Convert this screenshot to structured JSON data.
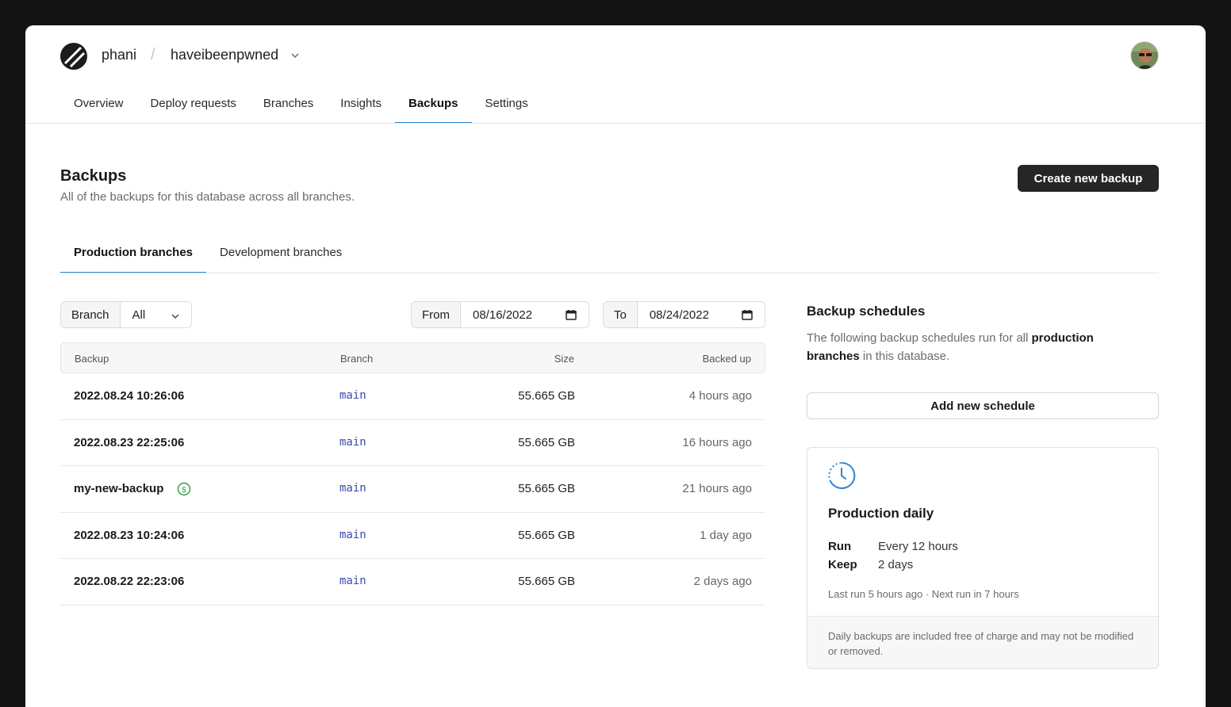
{
  "header": {
    "org": "phani",
    "separator": "/",
    "database": "haveibeenpwned"
  },
  "nav": {
    "items": [
      {
        "label": "Overview"
      },
      {
        "label": "Deploy requests"
      },
      {
        "label": "Branches"
      },
      {
        "label": "Insights"
      },
      {
        "label": "Backups",
        "active": true
      },
      {
        "label": "Settings"
      }
    ]
  },
  "page": {
    "title": "Backups",
    "subtitle": "All of the backups for this database across all branches.",
    "create_button": "Create new backup"
  },
  "tabs": [
    {
      "label": "Production branches",
      "active": true
    },
    {
      "label": "Development branches"
    }
  ],
  "filters": {
    "branch_label": "Branch",
    "branch_value": "All",
    "from_label": "From",
    "from_value": "08/16/2022",
    "to_label": "To",
    "to_value": "08/24/2022"
  },
  "table": {
    "headers": {
      "backup": "Backup",
      "branch": "Branch",
      "size": "Size",
      "backed_up": "Backed up"
    },
    "rows": [
      {
        "name": "2022.08.24 10:26:06",
        "branch": "main",
        "size": "55.665 GB",
        "ago": "4 hours ago"
      },
      {
        "name": "2022.08.23 22:25:06",
        "branch": "main",
        "size": "55.665 GB",
        "ago": "16 hours ago"
      },
      {
        "name": "my-new-backup",
        "branch": "main",
        "size": "55.665 GB",
        "ago": "21 hours ago",
        "billable": true
      },
      {
        "name": "2022.08.23 10:24:06",
        "branch": "main",
        "size": "55.665 GB",
        "ago": "1 day ago"
      },
      {
        "name": "2022.08.22 22:23:06",
        "branch": "main",
        "size": "55.665 GB",
        "ago": "2 days ago"
      }
    ]
  },
  "schedules": {
    "title": "Backup schedules",
    "desc_pre": "The following backup schedules run for all ",
    "desc_bold": "production branches",
    "desc_post": " in this database.",
    "add_button": "Add new schedule",
    "card": {
      "title": "Production daily",
      "run_label": "Run",
      "run_value": "Every 12 hours",
      "keep_label": "Keep",
      "keep_value": "2 days",
      "meta": "Last run 5 hours ago · Next run in 7 hours",
      "footer": "Daily backups are included free of charge and may not be modified or removed."
    }
  },
  "colors": {
    "accent": "#2b85d6",
    "branch_text": "#3c4aa8",
    "billing_icon": "#2f9a43",
    "primary_button": "#262626"
  }
}
